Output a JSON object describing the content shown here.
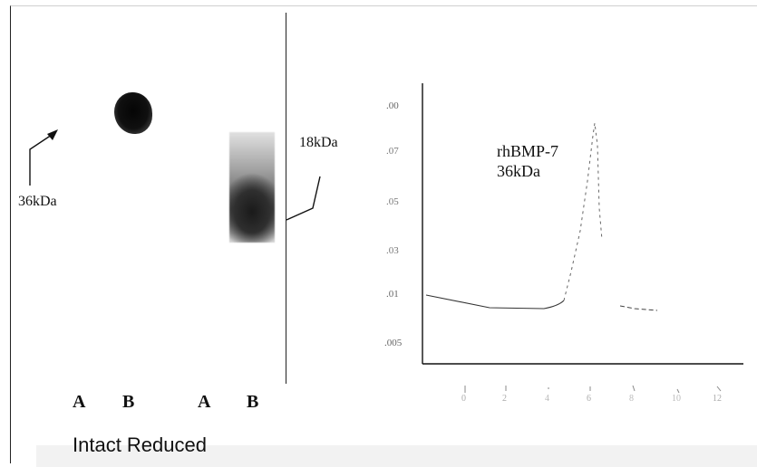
{
  "figure": {
    "gel": {
      "marker_left": "36kDa",
      "marker_right": "18kDa",
      "lanes": [
        "A",
        "B",
        "A",
        "B"
      ],
      "caption": "Intact Reduced"
    },
    "chromatogram": {
      "peak_label_line1": "rhBMP-7",
      "peak_label_line2": "36kDa",
      "y_ticks": [
        ".00",
        ".07",
        ".05",
        ".03",
        ".01",
        ".005"
      ],
      "x_ticks": [
        "0",
        "2",
        "4",
        "6",
        "8",
        "10",
        "12"
      ]
    }
  }
}
